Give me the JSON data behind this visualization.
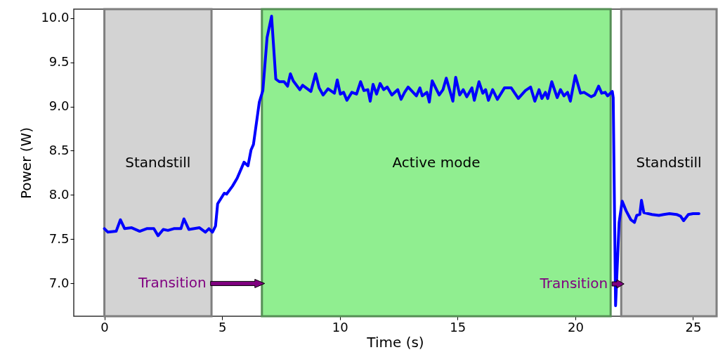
{
  "chart_data": {
    "type": "line",
    "xlabel": "Time (s)",
    "ylabel": "Power (W)",
    "xlim": [
      -1.3,
      26.0
    ],
    "ylim": [
      6.63,
      10.1
    ],
    "xticks": [
      0,
      5,
      10,
      15,
      20,
      25
    ],
    "yticks": [
      {
        "value": 7,
        "label": "7.0"
      },
      {
        "value": 7.5,
        "label": "7.5"
      },
      {
        "value": 8,
        "label": "8.0"
      },
      {
        "value": 8.5,
        "label": "8.5"
      },
      {
        "value": 9,
        "label": "9.0"
      },
      {
        "value": 9.5,
        "label": "9.5"
      },
      {
        "value": 10,
        "label": "10.0"
      }
    ],
    "grid": false,
    "line_style": "solid",
    "marker": "none",
    "bands": [
      {
        "axis": "x",
        "from": 0,
        "to": 4.55,
        "label": "Standstill",
        "color": "#d3d3d3"
      },
      {
        "axis": "x",
        "from": 6.69,
        "to": 21.5,
        "label": "Active mode",
        "color": "#90ee90"
      },
      {
        "axis": "x",
        "from": 21.95,
        "to": 26.0,
        "label": "Standstill",
        "color": "#d3d3d3"
      }
    ],
    "annotations": [
      {
        "text": "Transition",
        "x": 4.45,
        "y": 7.0
      },
      "Transition"
    ],
    "series": [
      {
        "color": "#0000ff",
        "x": [
          0,
          0.15,
          0.5,
          0.68,
          0.86,
          1.16,
          1.5,
          1.8,
          2.1,
          2.28,
          2.5,
          2.7,
          2.95,
          3.25,
          3.38,
          3.59,
          4.04,
          4.29,
          4.44,
          4.59,
          4.72,
          4.81,
          5.09,
          5.19,
          5.44,
          5.64,
          5.93,
          6.1,
          6.23,
          6.33,
          6.58,
          6.73,
          6.91,
          7.1,
          7.28,
          7.43,
          7.63,
          7.78,
          7.9,
          8.02,
          8.3,
          8.42,
          8.77,
          8.97,
          9.12,
          9.29,
          9.5,
          9.77,
          9.89,
          10.02,
          10.16,
          10.3,
          10.51,
          10.71,
          10.88,
          11.02,
          11.19,
          11.29,
          11.41,
          11.56,
          11.71,
          11.86,
          12.01,
          12.21,
          12.46,
          12.6,
          12.75,
          12.9,
          13.25,
          13.4,
          13.5,
          13.7,
          13.8,
          13.92,
          14.22,
          14.38,
          14.52,
          14.8,
          14.92,
          15.09,
          15.24,
          15.39,
          15.61,
          15.71,
          15.91,
          16.07,
          16.19,
          16.31,
          16.49,
          16.69,
          16.99,
          17.28,
          17.58,
          17.88,
          18.1,
          18.28,
          18.46,
          18.58,
          18.73,
          18.83,
          19.0,
          19.23,
          19.37,
          19.52,
          19.67,
          19.79,
          20.0,
          20.22,
          20.37,
          20.67,
          20.82,
          20.99,
          21.12,
          21.27,
          21.37,
          21.57,
          21.61,
          21.71,
          21.86,
          21.99,
          22.16,
          22.36,
          22.51,
          22.61,
          22.74,
          22.81,
          22.91,
          23.26,
          23.55,
          23.75,
          24.0,
          24.3,
          24.47,
          24.6,
          24.8,
          25.0,
          25.25
        ],
        "values": [
          7.62,
          7.58,
          7.59,
          7.72,
          7.62,
          7.63,
          7.59,
          7.62,
          7.62,
          7.54,
          7.61,
          7.6,
          7.62,
          7.62,
          7.73,
          7.61,
          7.63,
          7.58,
          7.62,
          7.58,
          7.65,
          7.9,
          8.02,
          8.01,
          8.1,
          8.19,
          8.37,
          8.33,
          8.51,
          8.57,
          9.05,
          9.18,
          9.78,
          10.02,
          9.31,
          9.28,
          9.28,
          9.23,
          9.37,
          9.29,
          9.19,
          9.24,
          9.17,
          9.37,
          9.21,
          9.13,
          9.2,
          9.15,
          9.3,
          9.14,
          9.16,
          9.07,
          9.16,
          9.14,
          9.28,
          9.18,
          9.19,
          9.06,
          9.25,
          9.14,
          9.26,
          9.19,
          9.22,
          9.13,
          9.19,
          9.08,
          9.16,
          9.22,
          9.12,
          9.21,
          9.12,
          9.16,
          9.05,
          9.29,
          9.13,
          9.19,
          9.32,
          9.06,
          9.33,
          9.13,
          9.19,
          9.11,
          9.21,
          9.07,
          9.28,
          9.15,
          9.19,
          9.07,
          9.19,
          9.08,
          9.21,
          9.21,
          9.09,
          9.18,
          9.22,
          9.06,
          9.19,
          9.09,
          9.16,
          9.09,
          9.28,
          9.1,
          9.19,
          9.12,
          9.16,
          9.06,
          9.35,
          9.15,
          9.16,
          9.11,
          9.13,
          9.23,
          9.15,
          9.16,
          9.12,
          9.17,
          9.1,
          6.75,
          7.69,
          7.93,
          7.82,
          7.72,
          7.69,
          7.77,
          7.78,
          7.94,
          7.8,
          7.78,
          7.77,
          7.78,
          7.79,
          7.78,
          7.76,
          7.71,
          7.78,
          7.79,
          7.79
        ]
      }
    ]
  }
}
